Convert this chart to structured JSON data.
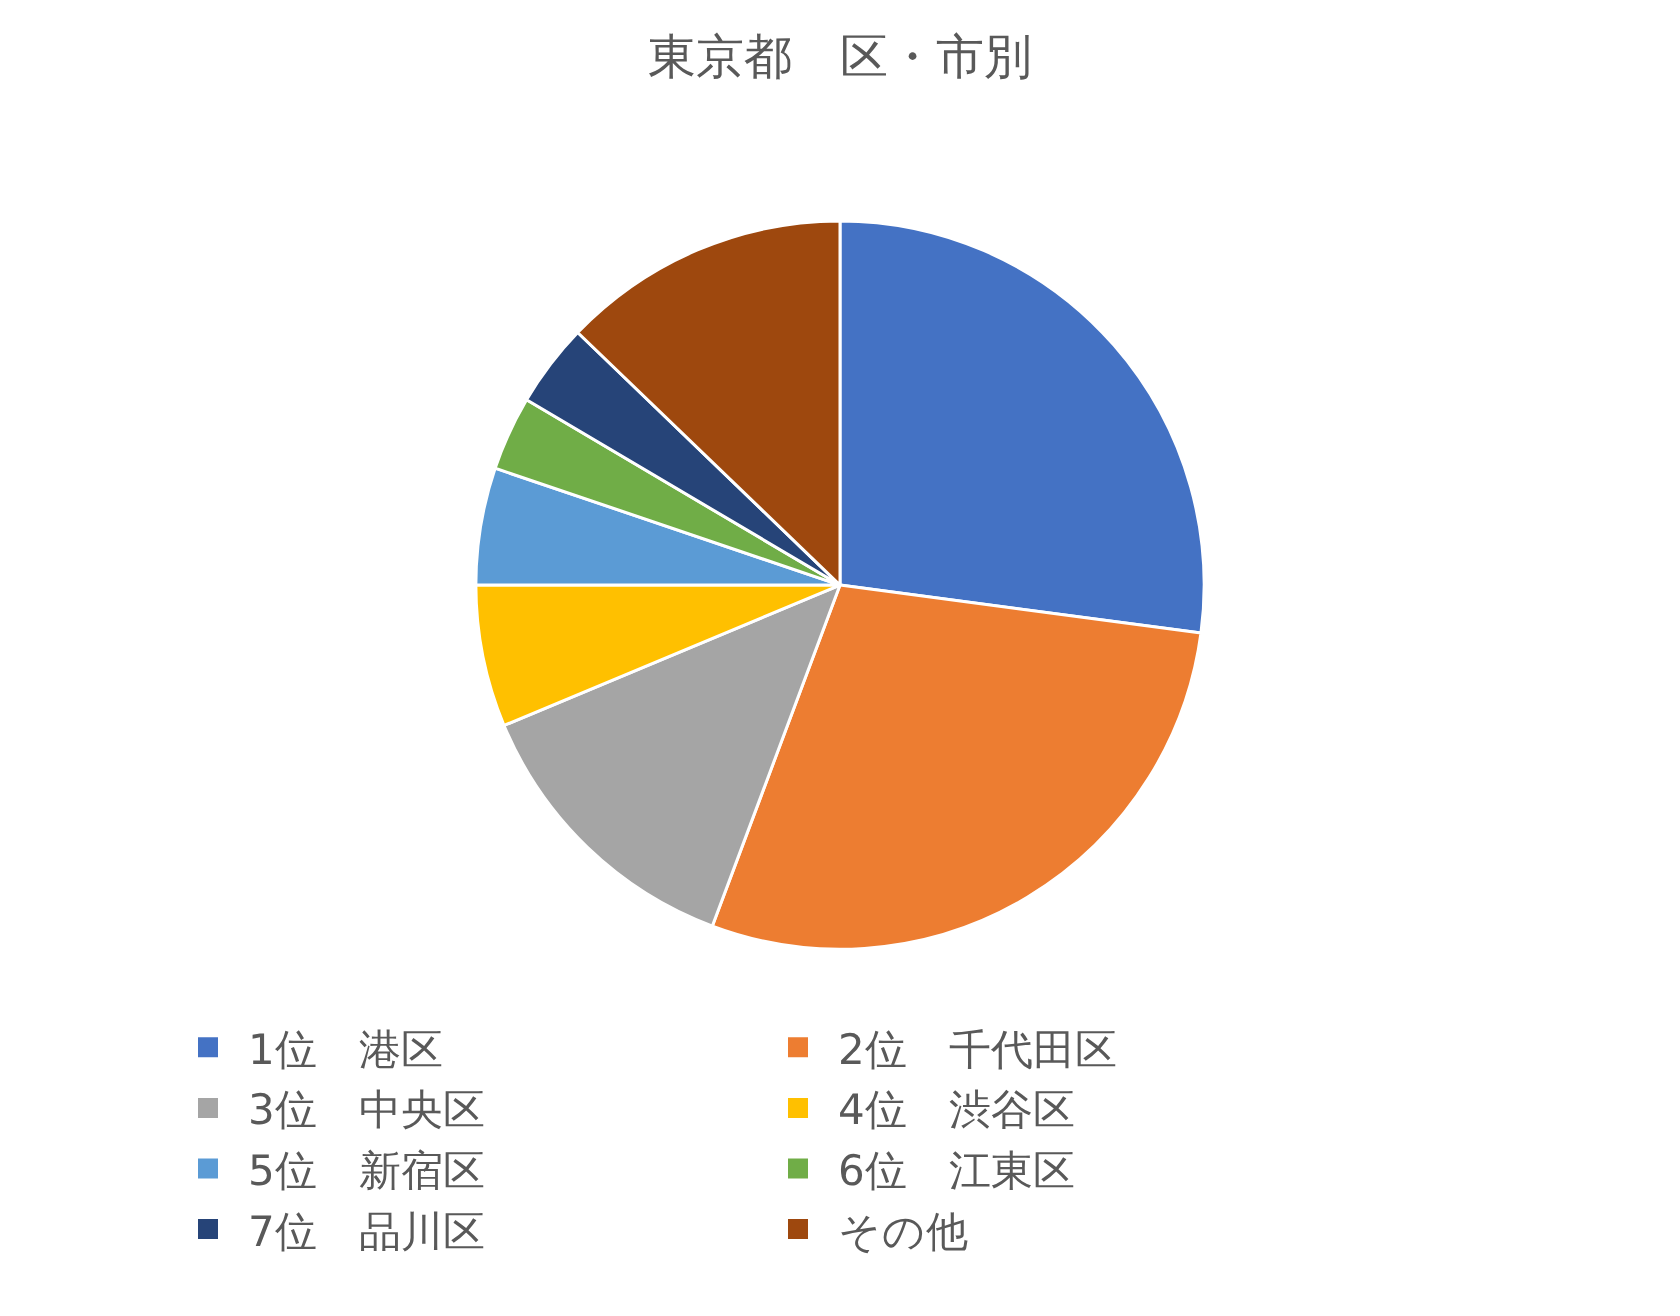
{
  "chart_data": {
    "type": "pie",
    "title": "東京都　区・市別",
    "categories": [
      "1位　港区",
      "2位　千代田区",
      "3位　中央区",
      "4位　渋谷区",
      "5位　新宿区",
      "6位　江東区",
      "7位　品川区",
      "その他"
    ],
    "values": [
      27.1,
      28.6,
      13.0,
      6.3,
      5.2,
      3.3,
      3.7,
      12.8
    ],
    "colors": [
      "#4472c4",
      "#ed7d31",
      "#a5a5a5",
      "#ffc000",
      "#5b9bd5",
      "#70ad47",
      "#264478",
      "#9e480e"
    ],
    "legend": "bottom"
  }
}
